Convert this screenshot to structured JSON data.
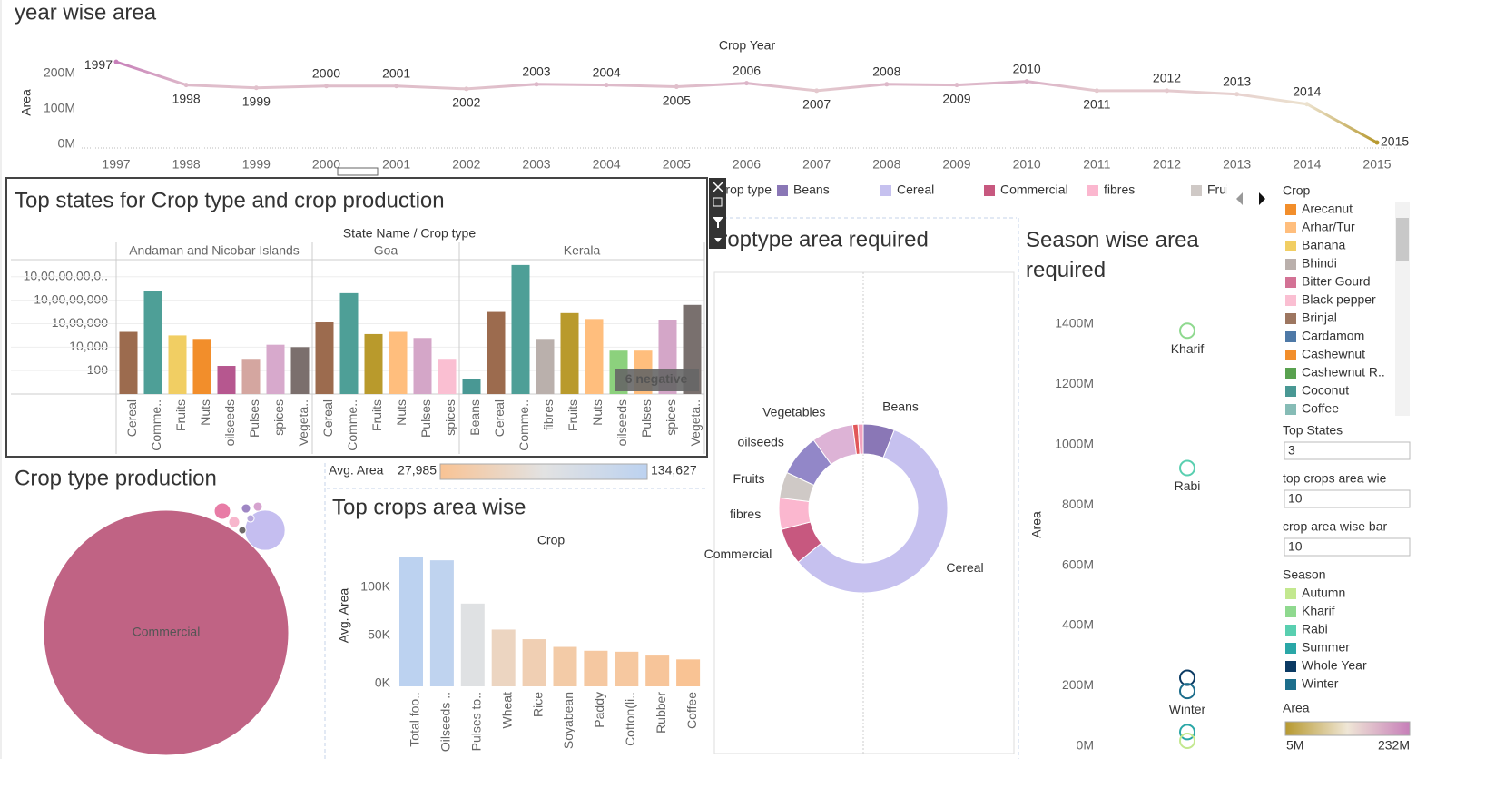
{
  "chart_data": [
    {
      "type": "line",
      "title": "year wise area",
      "x_title": "Crop Year",
      "y_title": "Area",
      "x": [
        1997,
        1998,
        1999,
        2000,
        2001,
        2002,
        2003,
        2004,
        2005,
        2006,
        2007,
        2008,
        2009,
        2010,
        2011,
        2012,
        2013,
        2014,
        2015
      ],
      "series": [
        {
          "values": [
            232,
            167,
            159,
            164,
            164,
            156,
            169,
            167,
            162,
            172,
            151,
            169,
            167,
            177,
            151,
            151,
            141,
            113,
            5
          ]
        }
      ],
      "ylim": [
        0,
        240
      ],
      "yticks": [
        {
          "value": 0,
          "label": "0M"
        },
        {
          "value": 100,
          "label": "100M"
        },
        {
          "value": 200,
          "label": "200M"
        }
      ],
      "color_scale": {
        "title": "Area",
        "min": {
          "value": 5,
          "label": "5M"
        },
        "max": {
          "value": 232,
          "label": "232M"
        },
        "colors": [
          "#b7992f",
          "#efe6d6",
          "#c77fb9"
        ]
      }
    },
    {
      "type": "grouped_bar",
      "title": "Top states for Crop type and crop production",
      "header_title": "State Name  /  Crop type",
      "log": true,
      "grid": true,
      "ylim": [
        1,
        200000000000
      ],
      "yticks": [
        100,
        {
          "value": 10000,
          "label": "10,000"
        },
        {
          "value": 1000000,
          "label": "10,00,000"
        },
        {
          "value": 100000000,
          "label": "10,00,00,000"
        },
        {
          "value": 10000000000,
          "label": "10,00,00,00,0.."
        }
      ],
      "annotation": "6 negative",
      "groups": [
        {
          "name": "Andaman and Nicobar Islands",
          "categories": [
            "Cereal",
            "Comme..",
            "Fruits",
            "Nuts",
            "oilseeds",
            "Pulses",
            "spices",
            "Vegeta.."
          ],
          "values": [
            200000,
            600000000,
            100000,
            50000,
            250,
            1000,
            16000,
            10000
          ],
          "colors": [
            "#9c6b4e",
            "#4e9f97",
            "#f1ce63",
            "#f28e2b",
            "#b6578f",
            "#d4a6a0",
            "#d7a9cc",
            "#7b6f6d"
          ]
        },
        {
          "name": "Goa",
          "categories": [
            "Cereal",
            "Comme..",
            "Fruits",
            "Nuts",
            "Pulses",
            "spices"
          ],
          "values": [
            1300000,
            400000000,
            130000,
            200000,
            60000,
            1000
          ],
          "colors": [
            "#9c6b4e",
            "#4e9f97",
            "#b99a2c",
            "#ffbe7d",
            "#d4a6c8",
            "#fabfd2"
          ]
        },
        {
          "name": "Kerala",
          "categories": [
            "Beans",
            "Cereal",
            "Comme..",
            "fibres",
            "Fruits",
            "Nuts",
            "oilseeds",
            "Pulses",
            "spices",
            "Vegeta.."
          ],
          "values": [
            20,
            10000000,
            100000000000,
            50000,
            8000000,
            2500000,
            5000,
            5000,
            2000000,
            40000000
          ],
          "colors": [
            "#499894",
            "#9c6b4e",
            "#4e9f97",
            "#bab0ac",
            "#b99a2c",
            "#ffbe7d",
            "#8cd17d",
            "#ffbe7d",
            "#d4a6c8",
            "#79706e"
          ]
        }
      ],
      "legend": {
        "title": "Crop",
        "names": [
          "Arecanut",
          "Arhar/Tur",
          "Banana",
          "Bhindi",
          "Bitter Gourd",
          "Black pepper",
          "Brinjal",
          "Cardamom",
          "Cashewnut",
          "Cashewnut R..",
          "Coconut",
          "Coffee"
        ],
        "colors": [
          "#f28e2b",
          "#ffbe7d",
          "#f1ce63",
          "#bab0ac",
          "#d37295",
          "#fabfd2",
          "#9d7660",
          "#4e79a7",
          "#f28e2b",
          "#59a14f",
          "#499894",
          "#86bcb6"
        ]
      }
    },
    {
      "type": "bubble",
      "title": "Crop type production",
      "categories": [
        "Commercial",
        null,
        null,
        null,
        null,
        null,
        null,
        null
      ],
      "values": [
        1000,
        27,
        4.4,
        2,
        1.4,
        1.4,
        0.9,
        0.9
      ],
      "colors": [
        "#c06384",
        "#c5bef0",
        "#e87ca6",
        "#f7b6cc",
        "#9e86c4",
        "#d6a3cf",
        "#6e6a6a",
        "#b8a9dc"
      ]
    },
    {
      "type": "bar",
      "title": "Top crops area wise",
      "x_title": "Crop",
      "y_title": "Avg. Area",
      "categories": [
        "Total foo..",
        "Oilseeds ..",
        "Pulses to..",
        "Wheat",
        "Rice",
        "Soyabean",
        "Paddy",
        "Cotton(li..",
        "Rubber",
        "Coffee"
      ],
      "values": [
        134627,
        131000,
        86000,
        59000,
        49000,
        41000,
        37000,
        36000,
        32000,
        27985
      ],
      "ylim": [
        0,
        150000
      ],
      "yticks": [
        {
          "value": 0,
          "label": "0K"
        },
        {
          "value": 50000,
          "label": "50K"
        },
        {
          "value": 100000,
          "label": "100K"
        }
      ],
      "color_scale": {
        "title": "Avg. Area",
        "min": {
          "value": 27985,
          "label": "27,985"
        },
        "max": {
          "value": 134627,
          "label": "134,627"
        },
        "colors": [
          "#f9c394",
          "#e2e2e2",
          "#bcd2f0"
        ]
      }
    },
    {
      "type": "donut",
      "title": "Croptype area required",
      "legend_title": "Crop type",
      "categories": [
        "Beans",
        "Cereal",
        "Commercial",
        "fibres",
        "Fruits",
        "oilseeds",
        "Vegetables",
        null,
        null
      ],
      "values": [
        6,
        58,
        7,
        6,
        5,
        8,
        8,
        1,
        1
      ],
      "colors": [
        "#8a77b6",
        "#c6c1ef",
        "#c7587f",
        "#fbb7cf",
        "#cfc9c6",
        "#9287c8",
        "#ddb3d6",
        "#e15759",
        "#f2a2bf"
      ]
    },
    {
      "type": "scatter",
      "title": "Season wise area required",
      "y_title": "Area",
      "labels": [
        "Kharif",
        "Rabi",
        null,
        "Winter",
        null,
        null
      ],
      "values": [
        1377,
        922,
        227,
        183,
        47,
        18
      ],
      "colors": [
        "#8fd98f",
        "#59cfb0",
        "#0b3a63",
        "#1d6e8c",
        "#2aa7a7",
        "#c3e88f"
      ],
      "ylim": [
        0,
        1450
      ],
      "yticks": [
        {
          "value": 0,
          "label": "0M"
        },
        {
          "value": 200,
          "label": "200M"
        },
        {
          "value": 400,
          "label": "400M"
        },
        {
          "value": 600,
          "label": "600M"
        },
        {
          "value": 800,
          "label": "800M"
        },
        {
          "value": 1000,
          "label": "1000M"
        },
        {
          "value": 1200,
          "label": "1200M"
        },
        {
          "value": 1400,
          "label": "1400M"
        }
      ],
      "legend": {
        "title": "Season",
        "names": [
          "Autumn",
          "Kharif",
          "Rabi",
          "Summer",
          "Whole Year",
          "Winter"
        ],
        "colors": [
          "#c3e88f",
          "#8fd98f",
          "#59cfb0",
          "#2aa7a7",
          "#0b3a63",
          "#1d6e8c"
        ]
      }
    }
  ],
  "parameters": [
    {
      "label": "Top States",
      "value": 3
    },
    {
      "label": "top crops area wie",
      "value": 10
    },
    {
      "label": "crop area wise bar",
      "value": 10
    }
  ]
}
